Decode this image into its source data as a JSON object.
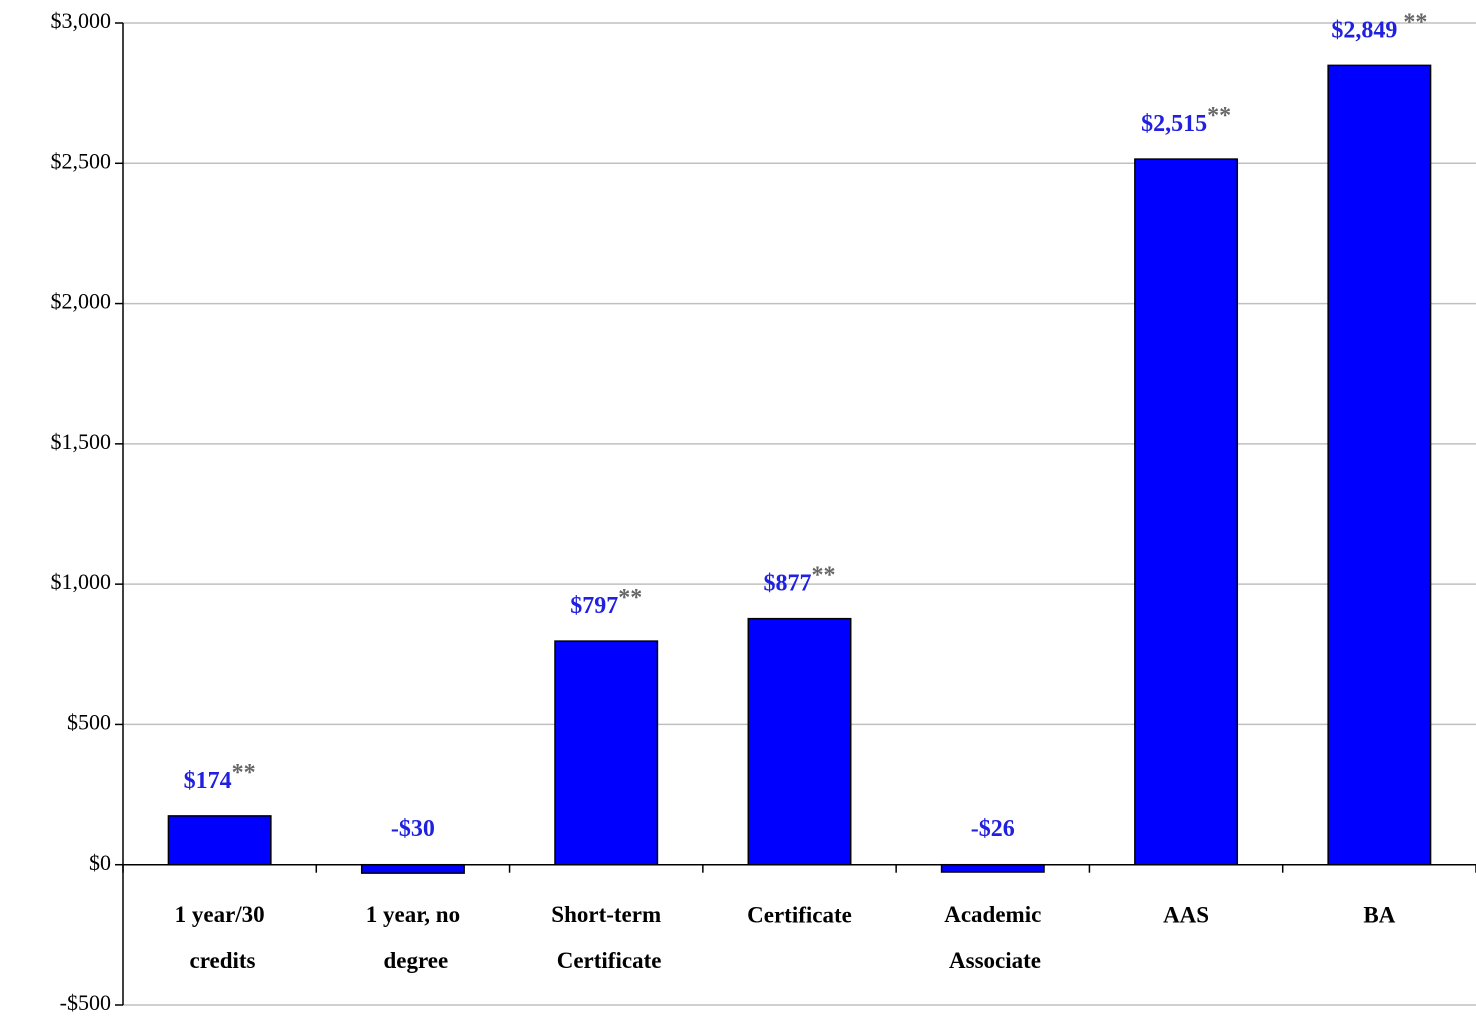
{
  "chart_data": {
    "type": "bar",
    "categories": [
      "1 year/30 credits",
      "1 year, no degree",
      "Short-term Certificate",
      "Certificate",
      "Academic Associate",
      "AAS",
      "BA"
    ],
    "values": [
      174,
      -30,
      797,
      877,
      -26,
      2515,
      2849
    ],
    "value_labels": [
      "$174**",
      "-$30",
      "$797**",
      "$877**",
      "-$26",
      "$2,515**",
      "$2,849 **"
    ],
    "color": "#0000ff",
    "ylim": [
      -500,
      3000
    ],
    "yticks": [
      {
        "value": -500,
        "label": "-$500"
      },
      {
        "value": 0,
        "label": "$0"
      },
      {
        "value": 500,
        "label": "$500"
      },
      {
        "value": 1000,
        "label": "$1,000"
      },
      {
        "value": 1500,
        "label": "$1,500"
      },
      {
        "value": 2000,
        "label": "$2,000"
      },
      {
        "value": 2500,
        "label": "$2,500"
      },
      {
        "value": 3000,
        "label": "$3,000"
      }
    ],
    "grid": true
  }
}
